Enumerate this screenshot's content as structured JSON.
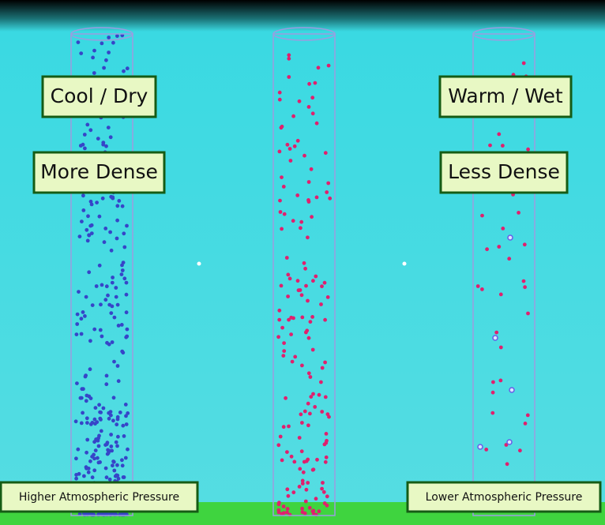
{
  "labels": {
    "left_top": "Cool / Dry",
    "left_middle": "More Dense",
    "right_top": "Warm / Wet",
    "right_middle": "Less Dense",
    "left_bottom": "Higher Atmospheric Pressure",
    "right_bottom": "Lower Atmospheric Pressure"
  }
}
